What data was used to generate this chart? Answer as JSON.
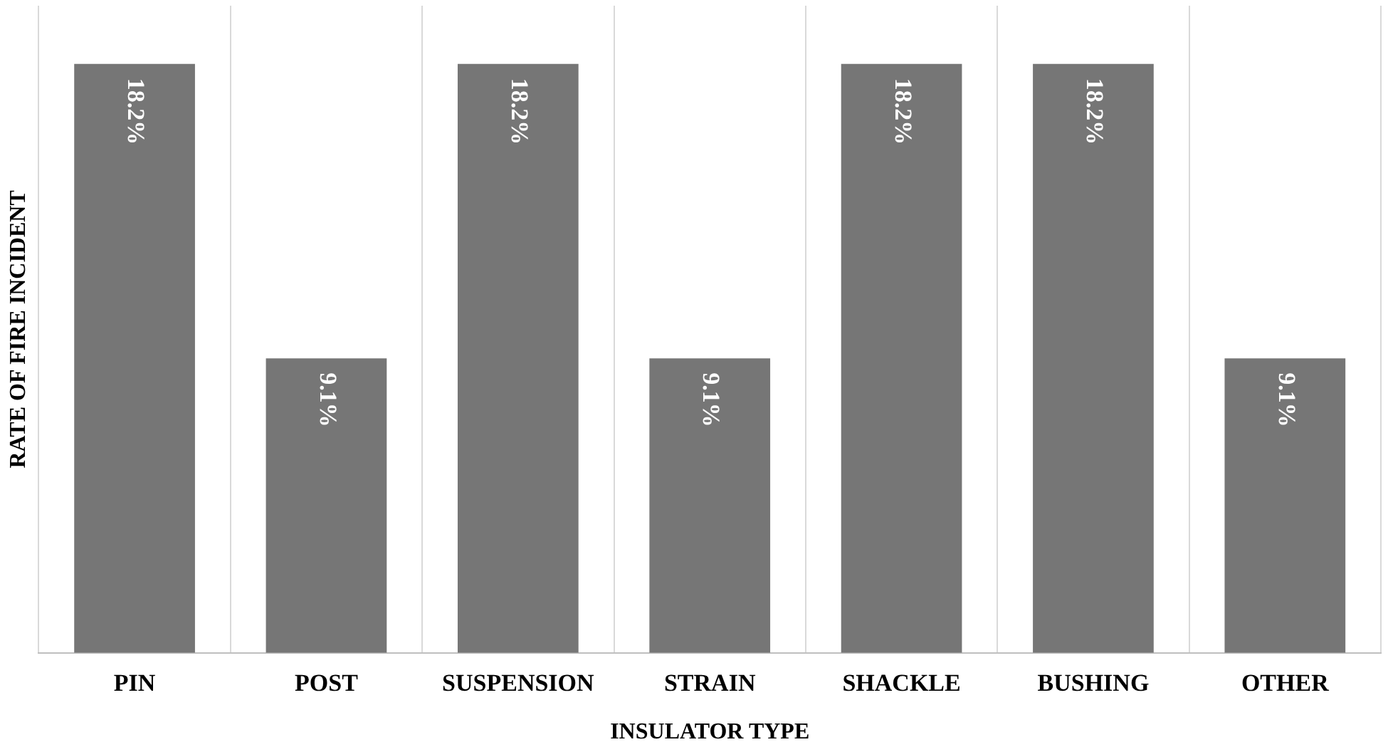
{
  "chart_data": {
    "type": "bar",
    "xlabel": "INSULATOR TYPE",
    "ylabel": "RATE OF FIRE INCIDENT",
    "categories": [
      "PIN",
      "POST",
      "SUSPENSION",
      "STRAIN",
      "SHACKLE",
      "BUSHING",
      "OTHER"
    ],
    "values": [
      18.2,
      9.1,
      18.2,
      9.1,
      18.2,
      18.2,
      9.1
    ],
    "value_labels": [
      "18.2%",
      "9.1%",
      "18.2%",
      "9.1%",
      "18.2%",
      "18.2%",
      "9.1%"
    ],
    "color": "#767676",
    "ylim": [
      0,
      20
    ],
    "grid": "x",
    "tick_labels": "x",
    "legend": false
  }
}
